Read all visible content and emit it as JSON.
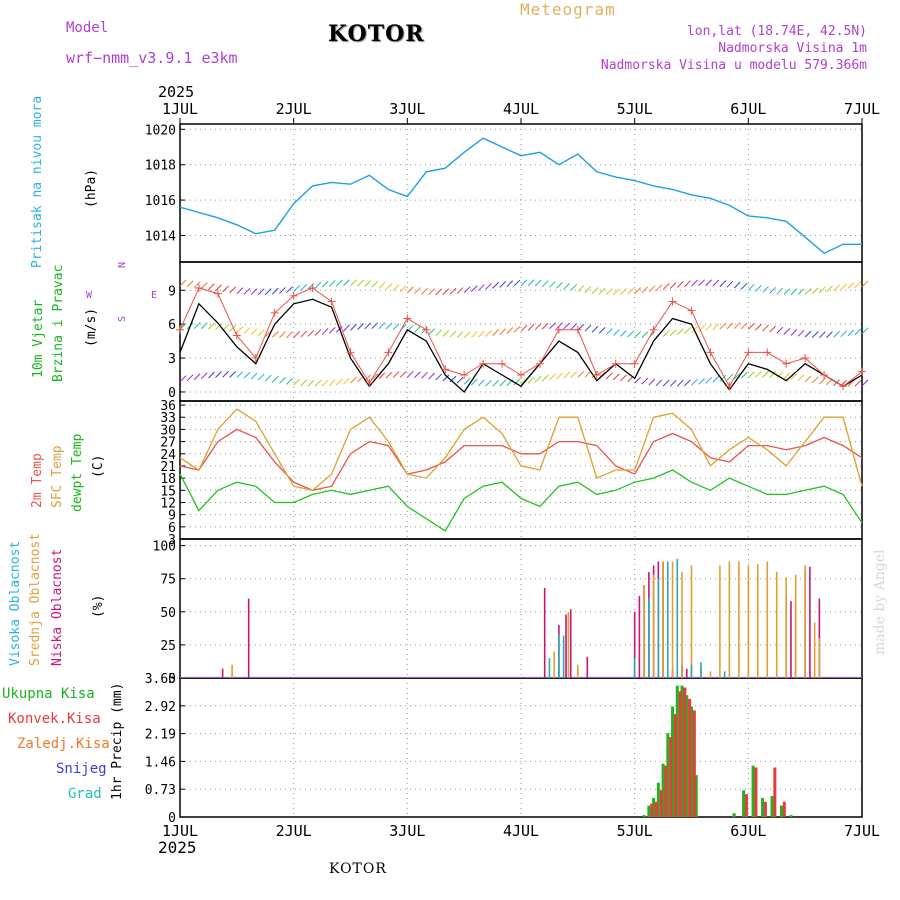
{
  "header": {
    "model_label": "Model",
    "model_name": "wrf−nmm_v3.9.1  e3km",
    "station": "KOTOR",
    "title": "Meteogram",
    "lonlat": "lon,lat (18.74E, 42.5N)",
    "elevation": "Nadmorska Visina 1m",
    "model_elevation": "Nadmorska Visina u modelu 579.366m",
    "watermark": "made by Angel",
    "footer_station": "KOTOR"
  },
  "time_axis": {
    "year": "2025",
    "ticks": [
      "1JUL",
      "2JUL",
      "3JUL",
      "4JUL",
      "5JUL",
      "6JUL",
      "7JUL"
    ]
  },
  "colors": {
    "pressure": "#1ea0e6",
    "temp2m": "#e8554a",
    "sfc": "#e0a030",
    "dewpt": "#22c422",
    "high_cloud": "#2aa8b8",
    "mid_cloud": "#e0a030",
    "low_cloud": "#c8147a",
    "total_rain": "#22b222",
    "conv_rain": "#e83c3c",
    "frozen": "#f07828",
    "snow": "#3c3cdc",
    "hail": "#20c0b0",
    "label_purple": "#b040d0",
    "label_teal": "#2bb3e0",
    "label_green": "#19b41e",
    "label_orange": "#e0a040",
    "label_red": "#e8554a",
    "label_magenta": "#c8147a"
  },
  "chart_data": [
    {
      "type": "line",
      "id": "pressure",
      "ylabel_rotated": "Pritisak na nivou mora",
      "unit": "(hPa)",
      "ylim": [
        1012.5,
        1020.3
      ],
      "yticks": [
        "1014",
        "1016",
        "1018",
        "1020"
      ],
      "x_hours": [
        0,
        4,
        8,
        12,
        16,
        20,
        24,
        28,
        32,
        36,
        40,
        44,
        48,
        52,
        56,
        60,
        64,
        68,
        72,
        76,
        80,
        84,
        88,
        92,
        96,
        100,
        104,
        108,
        112,
        116,
        120,
        124,
        128,
        132,
        136,
        140,
        144
      ],
      "series": [
        {
          "name": "MSLP",
          "values": [
            1015.6,
            1015.3,
            1015.0,
            1014.6,
            1014.1,
            1014.3,
            1015.8,
            1016.8,
            1017.0,
            1016.9,
            1017.4,
            1016.6,
            1016.2,
            1017.6,
            1017.8,
            1018.7,
            1019.5,
            1019.0,
            1018.5,
            1018.7,
            1018.0,
            1018.6,
            1017.6,
            1017.3,
            1017.1,
            1016.8,
            1016.6,
            1016.3,
            1016.1,
            1015.7,
            1015.1,
            1015.0,
            1014.8,
            1013.9,
            1013.0,
            1013.5,
            1013.5
          ]
        }
      ]
    },
    {
      "type": "line",
      "id": "wind",
      "ylabel_rotated_1": "10m Vjetar",
      "ylabel_rotated_2": "Brzina i Pravac",
      "unit": "(m/s)",
      "compass": {
        "n": "N",
        "s": "S",
        "w": "W",
        "e": "E"
      },
      "ylim": [
        -0.8,
        11.5
      ],
      "yticks": [
        "0",
        "3",
        "6",
        "9"
      ],
      "x_hours": [
        0,
        4,
        8,
        12,
        16,
        20,
        24,
        28,
        32,
        36,
        40,
        44,
        48,
        52,
        56,
        60,
        64,
        68,
        72,
        76,
        80,
        84,
        88,
        92,
        96,
        100,
        104,
        108,
        112,
        116,
        120,
        124,
        128,
        132,
        136,
        140,
        144
      ],
      "series": [
        {
          "name": "speed",
          "values": [
            3.5,
            7.8,
            6.1,
            4.0,
            2.5,
            6.0,
            7.8,
            8.2,
            7.5,
            3.0,
            0.5,
            2.5,
            5.5,
            4.5,
            1.5,
            0.0,
            2.5,
            1.5,
            0.5,
            2.5,
            4.5,
            3.5,
            1.0,
            2.5,
            1.2,
            4.5,
            6.5,
            6.0,
            2.5,
            0.2,
            2.5,
            2.0,
            1.0,
            2.5,
            1.5,
            0.5,
            1.5
          ]
        },
        {
          "name": "gust",
          "values": [
            5.5,
            9.2,
            8.7,
            5.0,
            3.0,
            7.0,
            8.5,
            9.2,
            8.0,
            3.5,
            0.8,
            3.5,
            6.5,
            5.5,
            2.0,
            1.5,
            2.5,
            2.5,
            1.5,
            2.5,
            5.5,
            5.5,
            1.5,
            2.5,
            2.5,
            5.5,
            8.0,
            7.2,
            3.5,
            0.5,
            3.5,
            3.5,
            2.5,
            3.0,
            1.5,
            0.5,
            1.8
          ]
        }
      ]
    },
    {
      "type": "line",
      "id": "temperature",
      "ylabel_rotated_1": "2m Temp",
      "ylabel_rotated_2": "SFC Temp",
      "ylabel_rotated_3": "dewpt Temp",
      "unit": "(C)",
      "ylim": [
        3,
        37
      ],
      "yticks": [
        "3",
        "6",
        "9",
        "12",
        "15",
        "18",
        "21",
        "24",
        "27",
        "30",
        "33",
        "36"
      ],
      "x_hours": [
        0,
        4,
        8,
        12,
        16,
        20,
        24,
        28,
        32,
        36,
        40,
        44,
        48,
        52,
        56,
        60,
        64,
        68,
        72,
        76,
        80,
        84,
        88,
        92,
        96,
        100,
        104,
        108,
        112,
        116,
        120,
        124,
        128,
        132,
        136,
        140,
        144
      ],
      "series": [
        {
          "name": "2m Temp",
          "values": [
            21,
            20,
            27,
            30,
            28,
            22,
            17,
            15,
            16,
            24,
            27,
            26,
            19,
            20,
            22,
            26,
            26,
            26,
            24,
            24,
            27,
            27,
            26,
            21,
            19,
            27,
            29,
            27,
            23,
            22,
            26,
            26,
            25,
            26,
            28,
            26,
            23
          ]
        },
        {
          "name": "SFC Temp",
          "values": [
            23,
            20,
            30,
            35,
            32,
            24,
            16,
            15,
            19,
            30,
            33,
            27,
            19,
            18,
            23,
            30,
            33,
            29,
            21,
            20,
            33,
            33,
            18,
            20,
            20,
            33,
            34,
            30,
            21,
            25,
            28,
            25,
            21,
            27,
            33,
            33,
            16
          ]
        },
        {
          "name": "dewpt Temp",
          "values": [
            19,
            10,
            15,
            17,
            16,
            12,
            12,
            14,
            15,
            14,
            15,
            16,
            11,
            8,
            5,
            13,
            16,
            17,
            13,
            11,
            16,
            17,
            14,
            15,
            17,
            18,
            20,
            17,
            15,
            18,
            16,
            14,
            14,
            15,
            16,
            14,
            7
          ]
        }
      ]
    },
    {
      "type": "bar",
      "id": "clouds",
      "ylabel_rotated_1": "Visoka Oblacnost",
      "ylabel_rotated_2": "Srednja Oblacnost",
      "ylabel_rotated_3": "Niska Oblacnost",
      "unit": "(%)",
      "ylim": [
        0,
        105
      ],
      "yticks": [
        "0",
        "25",
        "50",
        "75",
        "100"
      ],
      "series": [
        {
          "name": "low",
          "x_hours": [
            9,
            14.5,
            77,
            80,
            81.5,
            82.5,
            86,
            96,
            97,
            98,
            99,
            100,
            101,
            102,
            104,
            106,
            107,
            128,
            129,
            130,
            132,
            133,
            135
          ],
          "values": [
            7,
            60,
            68,
            40,
            48,
            52,
            16,
            50,
            62,
            70,
            80,
            85,
            88,
            88,
            6,
            10,
            7,
            63,
            58,
            52,
            80,
            84,
            60
          ]
        },
        {
          "name": "mid",
          "x_hours": [
            11,
            79,
            82,
            84,
            96,
            98,
            100,
            102,
            104,
            106,
            108,
            110,
            112,
            114,
            116,
            118,
            120,
            122,
            124,
            126,
            128,
            130,
            132,
            134,
            135
          ],
          "values": [
            10,
            20,
            50,
            10,
            14,
            70,
            78,
            88,
            88,
            80,
            85,
            8,
            5,
            85,
            88,
            88,
            85,
            86,
            88,
            80,
            76,
            78,
            85,
            42,
            30
          ]
        },
        {
          "name": "high",
          "x_hours": [
            78,
            80,
            81,
            96,
            99,
            101,
            103,
            105,
            108,
            110,
            115
          ],
          "values": [
            15,
            33,
            32,
            15,
            60,
            75,
            88,
            90,
            10,
            12,
            5
          ]
        }
      ]
    },
    {
      "type": "bar",
      "id": "precip",
      "ylabel_rotated": "1hr Precip (mm)",
      "legend": [
        "Ukupna  Kisa",
        "Konvek.Kisa",
        "Zaledj.Kisa",
        "Snijeg",
        "Grad"
      ],
      "ylim": [
        0,
        3.65
      ],
      "yticks": [
        "0",
        "0.73",
        "1.46",
        "2.19",
        "2.92",
        "3.65"
      ],
      "series": [
        {
          "name": "total",
          "x_hours": [
            98,
            99,
            100,
            101,
            102,
            103,
            104,
            105,
            106,
            107,
            108,
            109,
            117,
            119,
            121,
            123,
            125,
            127,
            129
          ],
          "values": [
            0.05,
            0.3,
            0.5,
            0.9,
            1.4,
            2.2,
            2.9,
            3.45,
            3.45,
            3.2,
            2.9,
            1.1,
            0.1,
            0.7,
            1.35,
            0.5,
            0.55,
            0.3,
            0.05
          ]
        },
        {
          "name": "convective",
          "x_hours": [
            99.6,
            100.6,
            101.6,
            102.6,
            103.6,
            104.6,
            105.6,
            106.6,
            107.6,
            108.6,
            119.6,
            121.6,
            123.6,
            125.6,
            127.6
          ],
          "values": [
            0.35,
            0.4,
            0.7,
            1.35,
            2.1,
            2.7,
            3.3,
            3.4,
            3.1,
            2.8,
            0.6,
            1.3,
            0.4,
            1.3,
            0.4
          ]
        }
      ]
    }
  ]
}
